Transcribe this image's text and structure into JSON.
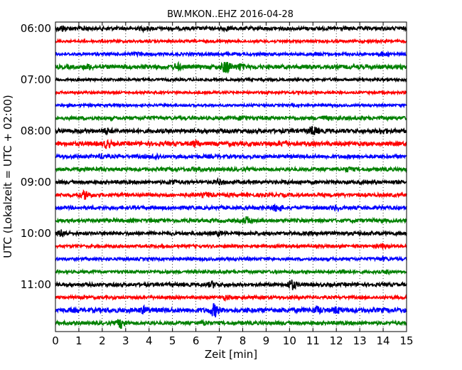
{
  "chart_data": {
    "type": "line",
    "title": "BW.MKON..EHZ 2016-04-28",
    "xlabel": "Zeit  [min]",
    "ylabel": "UTC (Lokalzeit = UTC + 02:00)",
    "xlim": [
      0,
      15
    ],
    "x_ticks": [
      "0",
      "1",
      "2",
      "3",
      "4",
      "5",
      "6",
      "7",
      "8",
      "9",
      "10",
      "11",
      "12",
      "13",
      "14",
      "15"
    ],
    "y_tick_labels": [
      "06:00",
      "07:00",
      "08:00",
      "09:00",
      "10:00",
      "11:00"
    ],
    "grid": "vertical dotted",
    "trace_color_cycle": [
      "#000000",
      "#ff0000",
      "#0000ff",
      "#008000"
    ],
    "traces": [
      {
        "start": "06:00",
        "color": "#000000",
        "amp": 0.3,
        "events": [
          {
            "t": 0.3,
            "a": 0.35
          },
          {
            "t": 1.2,
            "a": 0.2
          },
          {
            "t": 3.8,
            "a": 0.2
          },
          {
            "t": 7.3,
            "a": 0.2
          }
        ]
      },
      {
        "start": "06:15",
        "color": "#ff0000",
        "amp": 0.22,
        "events": []
      },
      {
        "start": "06:30",
        "color": "#0000ff",
        "amp": 0.25,
        "events": [
          {
            "t": 3.5,
            "a": 0.2
          },
          {
            "t": 11.2,
            "a": 0.15
          },
          {
            "t": 14.0,
            "a": 0.25
          }
        ]
      },
      {
        "start": "06:45",
        "color": "#008000",
        "amp": 0.35,
        "events": [
          {
            "t": 1.4,
            "a": 0.3
          },
          {
            "t": 5.2,
            "a": 0.4
          },
          {
            "t": 7.3,
            "a": 1.0
          },
          {
            "t": 7.9,
            "a": 0.4
          }
        ]
      },
      {
        "start": "07:00",
        "color": "#000000",
        "amp": 0.22,
        "events": []
      },
      {
        "start": "07:15",
        "color": "#ff0000",
        "amp": 0.2,
        "events": []
      },
      {
        "start": "07:30",
        "color": "#0000ff",
        "amp": 0.2,
        "events": []
      },
      {
        "start": "07:45",
        "color": "#008000",
        "amp": 0.3,
        "events": [
          {
            "t": 8.0,
            "a": 0.25
          },
          {
            "t": 11.5,
            "a": 0.2
          }
        ]
      },
      {
        "start": "08:00",
        "color": "#000000",
        "amp": 0.35,
        "events": [
          {
            "t": 2.2,
            "a": 0.3
          },
          {
            "t": 11.0,
            "a": 0.6
          },
          {
            "t": 14.0,
            "a": 0.3
          }
        ]
      },
      {
        "start": "08:15",
        "color": "#ff0000",
        "amp": 0.35,
        "events": [
          {
            "t": 2.2,
            "a": 0.5
          },
          {
            "t": 6.0,
            "a": 0.3
          },
          {
            "t": 9.8,
            "a": 0.3
          }
        ]
      },
      {
        "start": "08:30",
        "color": "#0000ff",
        "amp": 0.3,
        "events": [
          {
            "t": 2.0,
            "a": 0.25
          },
          {
            "t": 4.3,
            "a": 0.3
          }
        ]
      },
      {
        "start": "08:45",
        "color": "#008000",
        "amp": 0.3,
        "events": [
          {
            "t": 6.0,
            "a": 0.25
          },
          {
            "t": 12.5,
            "a": 0.25
          }
        ]
      },
      {
        "start": "09:00",
        "color": "#000000",
        "amp": 0.3,
        "events": [
          {
            "t": 5.0,
            "a": 0.3
          },
          {
            "t": 7.0,
            "a": 0.3
          }
        ]
      },
      {
        "start": "09:15",
        "color": "#ff0000",
        "amp": 0.3,
        "events": [
          {
            "t": 1.3,
            "a": 0.6
          },
          {
            "t": 6.5,
            "a": 0.25
          }
        ]
      },
      {
        "start": "09:30",
        "color": "#0000ff",
        "amp": 0.3,
        "events": [
          {
            "t": 9.5,
            "a": 0.6
          },
          {
            "t": 12.0,
            "a": 0.25
          }
        ]
      },
      {
        "start": "09:45",
        "color": "#008000",
        "amp": 0.3,
        "events": [
          {
            "t": 8.2,
            "a": 0.5
          }
        ]
      },
      {
        "start": "10:00",
        "color": "#000000",
        "amp": 0.3,
        "events": [
          {
            "t": 0.3,
            "a": 0.5
          },
          {
            "t": 7.0,
            "a": 0.25
          }
        ]
      },
      {
        "start": "10:15",
        "color": "#ff0000",
        "amp": 0.25,
        "events": [
          {
            "t": 14.0,
            "a": 0.2
          }
        ]
      },
      {
        "start": "10:30",
        "color": "#0000ff",
        "amp": 0.25,
        "events": [
          {
            "t": 14.0,
            "a": 0.2
          }
        ]
      },
      {
        "start": "10:45",
        "color": "#008000",
        "amp": 0.25,
        "events": [
          {
            "t": 12.3,
            "a": 0.25
          },
          {
            "t": 14.2,
            "a": 0.2
          }
        ]
      },
      {
        "start": "11:00",
        "color": "#000000",
        "amp": 0.3,
        "events": [
          {
            "t": 6.7,
            "a": 0.4
          },
          {
            "t": 10.1,
            "a": 0.7
          }
        ]
      },
      {
        "start": "11:15",
        "color": "#ff0000",
        "amp": 0.25,
        "events": [
          {
            "t": 7.3,
            "a": 0.3
          }
        ]
      },
      {
        "start": "11:30",
        "color": "#0000ff",
        "amp": 0.4,
        "events": [
          {
            "t": 3.8,
            "a": 0.4
          },
          {
            "t": 6.8,
            "a": 0.9
          },
          {
            "t": 11.2,
            "a": 0.4
          },
          {
            "t": 12.0,
            "a": 0.4
          }
        ]
      },
      {
        "start": "11:45",
        "color": "#008000",
        "amp": 0.3,
        "events": [
          {
            "t": 2.8,
            "a": 0.7
          },
          {
            "t": 6.4,
            "a": 0.25
          }
        ]
      }
    ]
  }
}
